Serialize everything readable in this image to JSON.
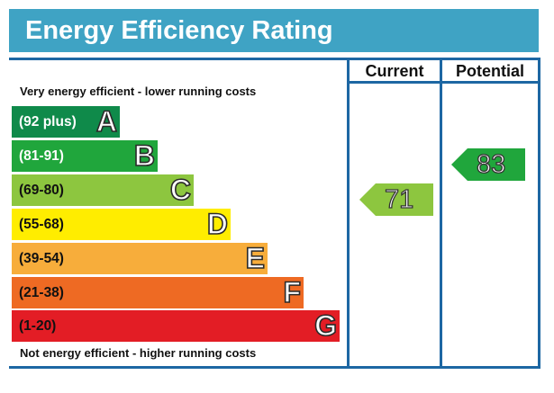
{
  "title": "Energy Efficiency Rating",
  "columns": {
    "current": "Current",
    "potential": "Potential"
  },
  "captions": {
    "top": "Very energy efficient - lower running costs",
    "bottom": "Not energy efficient - higher running costs"
  },
  "bands": [
    {
      "range": "(92 plus)",
      "letter": "A",
      "color": "#0f8a4a",
      "text_color": "#ffffff"
    },
    {
      "range": "(81-91)",
      "letter": "B",
      "color": "#20a63c",
      "text_color": "#ffffff"
    },
    {
      "range": "(69-80)",
      "letter": "C",
      "color": "#8dc63f",
      "text_color": "#111111"
    },
    {
      "range": "(55-68)",
      "letter": "D",
      "color": "#ffed00",
      "text_color": "#111111"
    },
    {
      "range": "(39-54)",
      "letter": "E",
      "color": "#f7ad3b",
      "text_color": "#111111"
    },
    {
      "range": "(21-38)",
      "letter": "F",
      "color": "#ee6a23",
      "text_color": "#111111"
    },
    {
      "range": "(1-20)",
      "letter": "G",
      "color": "#e31d25",
      "text_color": "#111111"
    }
  ],
  "ratings": {
    "current": {
      "value": "71",
      "band": "C",
      "color": "#8dc63f"
    },
    "potential": {
      "value": "83",
      "band": "B",
      "color": "#20a63c"
    }
  },
  "colors": {
    "header": "#3fa3c4",
    "frame": "#1d67a3"
  }
}
